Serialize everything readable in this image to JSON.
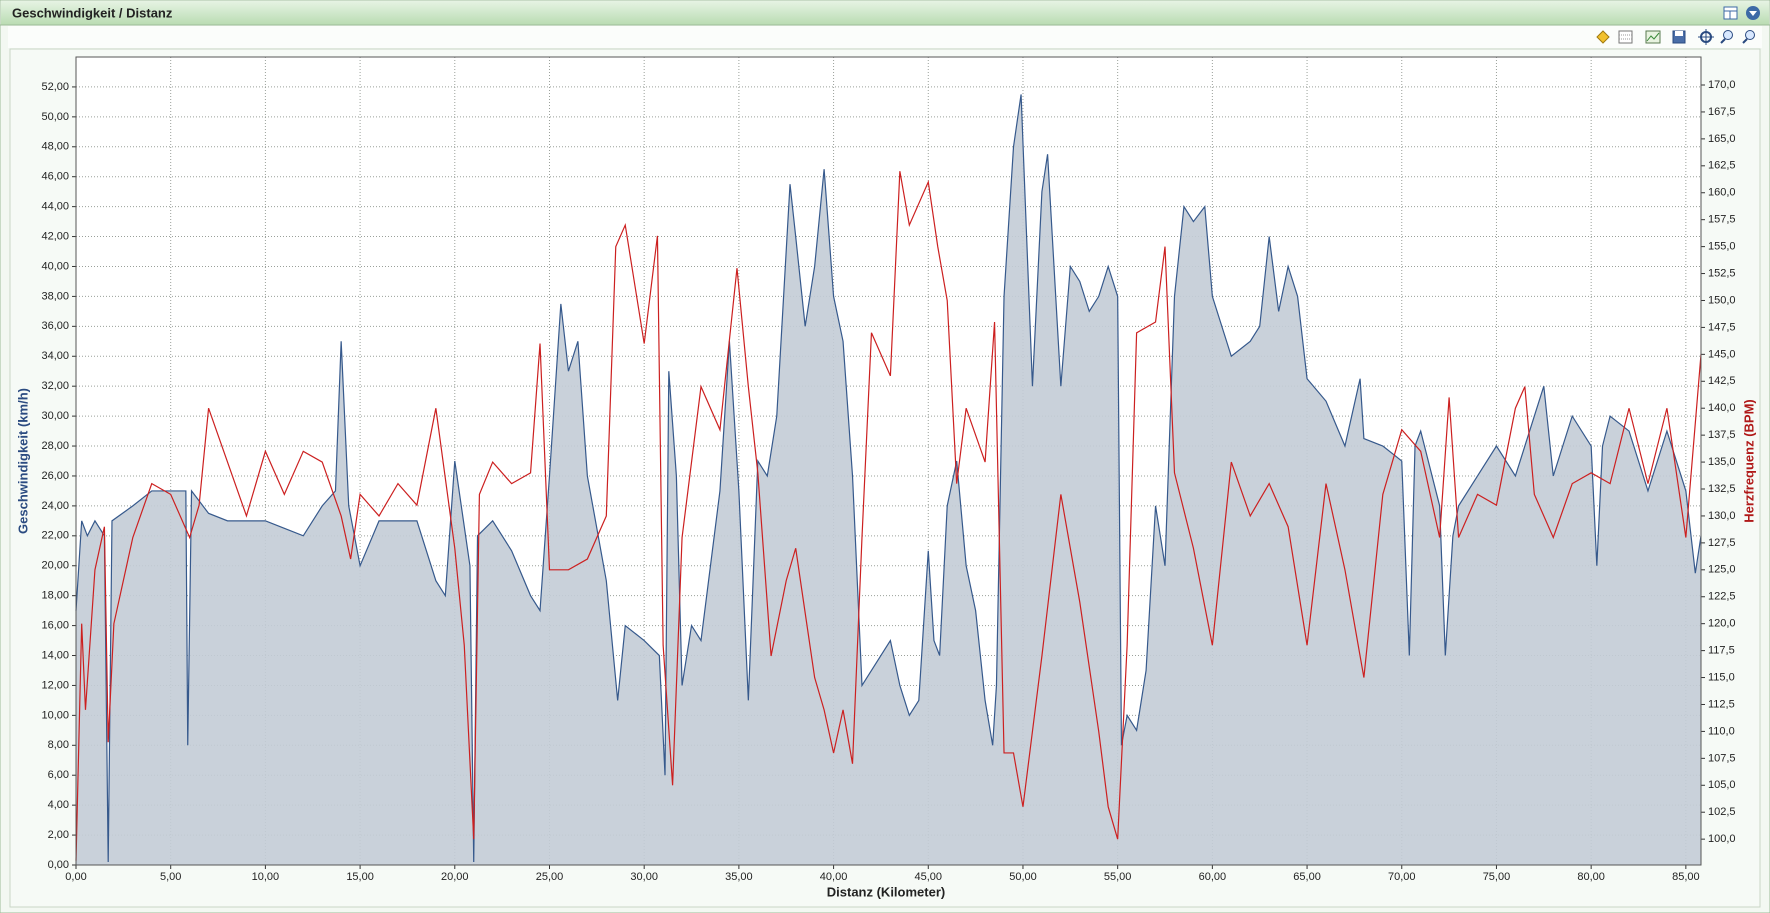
{
  "window": {
    "title": "Geschwindigkeit / Distanz"
  },
  "chart_data": {
    "type": "line",
    "xlabel": "Distanz (Kilometer)",
    "ylabel": "Geschwindigkeit (km/h)",
    "y2label": "Herzfrequenz (BPM)",
    "grid": true,
    "xlim": [
      0,
      85.8
    ],
    "xticks": [
      {
        "value": 0,
        "label": "0,00"
      },
      {
        "value": 5,
        "label": "5,00"
      },
      {
        "value": 10,
        "label": "10,00"
      },
      {
        "value": 15,
        "label": "15,00"
      },
      {
        "value": 20,
        "label": "20,00"
      },
      {
        "value": 25,
        "label": "25,00"
      },
      {
        "value": 30,
        "label": "30,00"
      },
      {
        "value": 35,
        "label": "35,00"
      },
      {
        "value": 40,
        "label": "40,00"
      },
      {
        "value": 45,
        "label": "45,00"
      },
      {
        "value": 50,
        "label": "50,00"
      },
      {
        "value": 55,
        "label": "55,00"
      },
      {
        "value": 60,
        "label": "60,00"
      },
      {
        "value": 65,
        "label": "65,00"
      },
      {
        "value": 70,
        "label": "70,00"
      },
      {
        "value": 75,
        "label": "75,00"
      },
      {
        "value": 80,
        "label": "80,00"
      },
      {
        "value": 85,
        "label": "85,00"
      }
    ],
    "ylim": [
      0,
      54
    ],
    "yticks": [
      {
        "value": 0,
        "label": "0,00"
      },
      {
        "value": 2,
        "label": "2,00"
      },
      {
        "value": 4,
        "label": "4,00"
      },
      {
        "value": 6,
        "label": "6,00"
      },
      {
        "value": 8,
        "label": "8,00"
      },
      {
        "value": 10,
        "label": "10,00"
      },
      {
        "value": 12,
        "label": "12,00"
      },
      {
        "value": 14,
        "label": "14,00"
      },
      {
        "value": 16,
        "label": "16,00"
      },
      {
        "value": 18,
        "label": "18,00"
      },
      {
        "value": 20,
        "label": "20,00"
      },
      {
        "value": 22,
        "label": "22,00"
      },
      {
        "value": 24,
        "label": "24,00"
      },
      {
        "value": 26,
        "label": "26,00"
      },
      {
        "value": 28,
        "label": "28,00"
      },
      {
        "value": 30,
        "label": "30,00"
      },
      {
        "value": 32,
        "label": "32,00"
      },
      {
        "value": 34,
        "label": "34,00"
      },
      {
        "value": 36,
        "label": "36,00"
      },
      {
        "value": 38,
        "label": "38,00"
      },
      {
        "value": 40,
        "label": "40,00"
      },
      {
        "value": 42,
        "label": "42,00"
      },
      {
        "value": 44,
        "label": "44,00"
      },
      {
        "value": 46,
        "label": "46,00"
      },
      {
        "value": 48,
        "label": "48,00"
      },
      {
        "value": 50,
        "label": "50,00"
      },
      {
        "value": 52,
        "label": "52,00"
      }
    ],
    "y2lim": [
      97.6,
      172.6
    ],
    "y2ticks": [
      {
        "value": 100,
        "label": "100,0"
      },
      {
        "value": 102.5,
        "label": "102,5"
      },
      {
        "value": 105,
        "label": "105,0"
      },
      {
        "value": 107.5,
        "label": "107,5"
      },
      {
        "value": 110,
        "label": "110,0"
      },
      {
        "value": 112.5,
        "label": "112,5"
      },
      {
        "value": 115,
        "label": "115,0"
      },
      {
        "value": 117.5,
        "label": "117,5"
      },
      {
        "value": 120,
        "label": "120,0"
      },
      {
        "value": 122.5,
        "label": "122,5"
      },
      {
        "value": 125,
        "label": "125,0"
      },
      {
        "value": 127.5,
        "label": "127,5"
      },
      {
        "value": 130,
        "label": "130,0"
      },
      {
        "value": 132.5,
        "label": "132,5"
      },
      {
        "value": 135,
        "label": "135,0"
      },
      {
        "value": 137.5,
        "label": "137,5"
      },
      {
        "value": 140,
        "label": "140,0"
      },
      {
        "value": 142.5,
        "label": "142,5"
      },
      {
        "value": 145,
        "label": "145,0"
      },
      {
        "value": 147.5,
        "label": "147,5"
      },
      {
        "value": 150,
        "label": "150,0"
      },
      {
        "value": 152.5,
        "label": "152,5"
      },
      {
        "value": 155,
        "label": "155,0"
      },
      {
        "value": 157.5,
        "label": "157,5"
      },
      {
        "value": 160,
        "label": "160,0"
      },
      {
        "value": 162.5,
        "label": "162,5"
      },
      {
        "value": 165,
        "label": "165,0"
      },
      {
        "value": 167.5,
        "label": "167,5"
      },
      {
        "value": 170,
        "label": "170,0"
      }
    ],
    "series": [
      {
        "type": "area",
        "color": "#36598c",
        "fill": "#c3ccd6",
        "x": [
          0,
          0.3,
          0.6,
          1,
          1.5,
          1.7,
          1.9,
          3,
          4,
          5,
          5.8,
          5.9,
          6.1,
          7,
          8,
          9,
          10,
          11,
          12,
          13,
          13.7,
          14,
          14.4,
          15,
          16,
          17,
          18,
          19,
          19.5,
          20,
          20.8,
          21,
          21.2,
          22,
          23,
          24,
          24.5,
          25,
          25.6,
          26,
          26.5,
          27,
          28,
          28.6,
          29,
          30,
          30.8,
          31.1,
          31.3,
          31.7,
          32,
          32.5,
          33,
          34,
          34.5,
          35,
          35.5,
          36,
          36.5,
          37,
          37.7,
          38,
          38.5,
          39,
          39.5,
          40,
          40.5,
          41,
          41.5,
          42,
          43,
          43.5,
          44,
          44.5,
          45,
          45.3,
          45.6,
          46,
          46.5,
          47,
          47.5,
          48,
          48.4,
          48.6,
          49,
          49.5,
          49.9,
          50.5,
          51,
          51.3,
          52,
          52.5,
          53,
          53.5,
          54,
          54.5,
          55,
          55.2,
          55.5,
          56,
          56.5,
          57,
          57.5,
          58,
          58.5,
          59,
          59.6,
          60,
          61,
          62,
          62.5,
          63,
          63.5,
          64,
          64.5,
          65,
          66,
          67,
          67.8,
          68,
          69,
          70,
          70.4,
          70.7,
          71,
          72,
          72.3,
          72.7,
          73,
          74,
          75,
          76,
          77,
          77.5,
          78,
          79,
          80,
          80.3,
          80.6,
          81,
          82,
          83,
          84,
          85,
          85.5,
          85.8
        ],
        "values": [
          17,
          23,
          22,
          23,
          22,
          0.2,
          23,
          24,
          25,
          25,
          25,
          8,
          25,
          23.5,
          23,
          23,
          23,
          22.5,
          22,
          24,
          25,
          35,
          24,
          20,
          23,
          23,
          23,
          19,
          18,
          27,
          20,
          0.2,
          22,
          23,
          21,
          18,
          17,
          26,
          37.5,
          33,
          35,
          26,
          19,
          11,
          16,
          15,
          14,
          6,
          33,
          26,
          12,
          16,
          15,
          25,
          35,
          25,
          11,
          27,
          26,
          30,
          45.5,
          42,
          36,
          40,
          46.5,
          38,
          35,
          26,
          12,
          13,
          15,
          12,
          10,
          11,
          21,
          15,
          14,
          24,
          27,
          20,
          17,
          11,
          8,
          12,
          38,
          48,
          51.5,
          32,
          45,
          47.5,
          32,
          40,
          39,
          37,
          38,
          40,
          38,
          8,
          10,
          9,
          13,
          24,
          20,
          38,
          44,
          43,
          44,
          38,
          34,
          35,
          36,
          42,
          37,
          40,
          38,
          32.5,
          31,
          28,
          32.5,
          28.5,
          28,
          27,
          14,
          28,
          29,
          24,
          14,
          22,
          24,
          26,
          28,
          26,
          30,
          32,
          26,
          30,
          28,
          20,
          28,
          30,
          29,
          25,
          29,
          25,
          19.5,
          22
        ]
      },
      {
        "type": "line",
        "axis": "y2",
        "color": "#cc2020",
        "x": [
          0,
          0.3,
          0.5,
          1,
          1.5,
          1.7,
          2,
          3,
          4,
          5,
          6,
          6.5,
          7,
          8,
          9,
          10,
          11,
          12,
          13,
          14,
          14.5,
          15,
          16,
          17,
          18,
          19,
          20,
          20.5,
          21,
          21.3,
          22,
          23,
          24,
          24.5,
          25,
          26,
          27,
          28,
          28.5,
          29,
          30,
          30.7,
          31,
          31.5,
          32,
          33,
          34,
          34.9,
          35.5,
          36,
          36.7,
          37.5,
          38,
          39,
          39.5,
          40,
          40.5,
          41,
          41.5,
          42,
          43,
          43.5,
          44,
          45,
          45.5,
          46,
          46.5,
          47,
          48,
          48.5,
          49,
          49.5,
          50,
          50.5,
          51,
          52,
          53,
          54,
          54.5,
          55,
          55.5,
          56,
          57,
          57.5,
          58,
          59,
          60,
          61,
          62,
          63,
          64,
          65,
          66,
          67,
          68,
          69,
          70,
          71,
          72,
          72.5,
          73,
          74,
          75,
          76,
          76.5,
          77,
          78,
          79,
          80,
          81,
          82,
          83,
          84,
          85,
          85.8
        ],
        "values": [
          98,
          120,
          112,
          125,
          129,
          109,
          120,
          128,
          133,
          132,
          128,
          131,
          140,
          135,
          130,
          136,
          132,
          136,
          135,
          130,
          126,
          132,
          130,
          133,
          131,
          140,
          127,
          118,
          100,
          132,
          135,
          133,
          134,
          146,
          125,
          125,
          126,
          130,
          155,
          157,
          146,
          156,
          118,
          105,
          128,
          142,
          138,
          153,
          142,
          134,
          117,
          124,
          127,
          115,
          112,
          108,
          112,
          107,
          128,
          147,
          143,
          162,
          157,
          161,
          155,
          150,
          133,
          140,
          135,
          148,
          108,
          108,
          103,
          110,
          117,
          132,
          122,
          110,
          103,
          100,
          118,
          147,
          148,
          155,
          134,
          127,
          118,
          135,
          130,
          133,
          129,
          118,
          133,
          125,
          115,
          132,
          138,
          136,
          128,
          141,
          128,
          132,
          131,
          140,
          142,
          132,
          128,
          133,
          134,
          133,
          140,
          133,
          140,
          128,
          145
        ]
      }
    ]
  }
}
